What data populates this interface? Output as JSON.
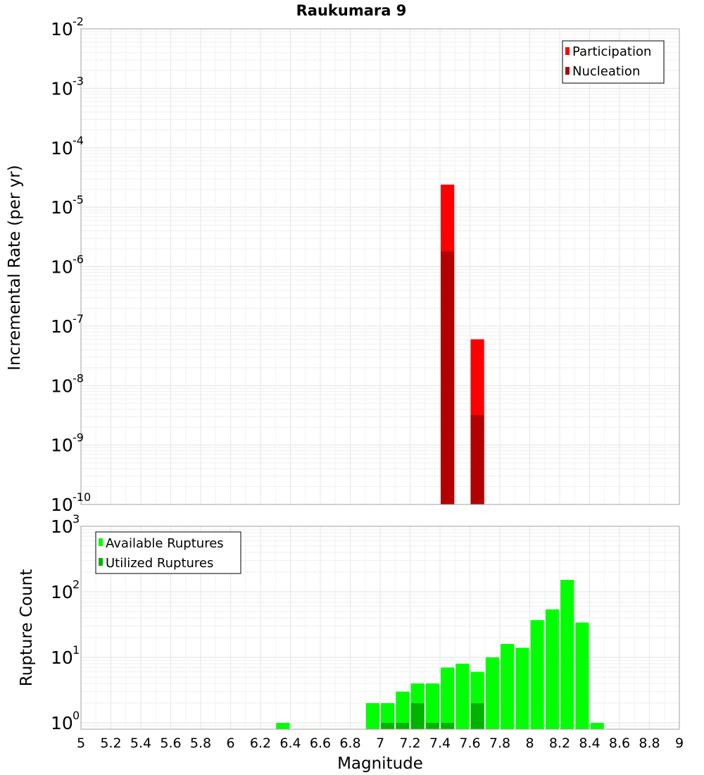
{
  "chart_data": [
    {
      "type": "bar",
      "title": "Raukumara 9",
      "xlabel": "",
      "ylabel": "Incremental Rate (per yr)",
      "yscale": "log",
      "xlim": [
        5,
        9
      ],
      "ylim": [
        1e-10,
        0.01
      ],
      "y_ticks": [
        {
          "base": "10",
          "exp": "-10"
        },
        {
          "base": "10",
          "exp": "-9"
        },
        {
          "base": "10",
          "exp": "-8"
        },
        {
          "base": "10",
          "exp": "-7"
        },
        {
          "base": "10",
          "exp": "-6"
        },
        {
          "base": "10",
          "exp": "-5"
        },
        {
          "base": "10",
          "exp": "-4"
        },
        {
          "base": "10",
          "exp": "-3"
        },
        {
          "base": "10",
          "exp": "-2"
        }
      ],
      "legend_position": "top-right",
      "grid": true,
      "bar_width": 0.09,
      "series": [
        {
          "name": "Participation",
          "color": "#ff0000",
          "x": [
            7.45,
            7.65
          ],
          "values": [
            2.4e-05,
            6e-08
          ]
        },
        {
          "name": "Nucleation",
          "color": "#b30000",
          "x": [
            7.45,
            7.65
          ],
          "values": [
            1.8e-06,
            3.2e-09
          ]
        }
      ]
    },
    {
      "type": "bar",
      "title": "",
      "xlabel": "Magnitude",
      "ylabel": "Rupture Count",
      "yscale": "log",
      "xlim": [
        5,
        9
      ],
      "ylim": [
        0.8,
        1000
      ],
      "x_ticks": [
        "5",
        "5.2",
        "5.4",
        "5.6",
        "5.8",
        "6",
        "6.2",
        "6.4",
        "6.6",
        "6.8",
        "7",
        "7.2",
        "7.4",
        "7.6",
        "7.8",
        "8",
        "8.2",
        "8.4",
        "8.6",
        "8.8",
        "9"
      ],
      "y_ticks": [
        {
          "base": "10",
          "exp": "0"
        },
        {
          "base": "10",
          "exp": "1"
        },
        {
          "base": "10",
          "exp": "2"
        },
        {
          "base": "10",
          "exp": "3"
        }
      ],
      "legend_position": "top-left",
      "grid": true,
      "bar_width": 0.09,
      "series": [
        {
          "name": "Available Ruptures",
          "color": "#00ff00",
          "x": [
            6.35,
            6.95,
            7.05,
            7.15,
            7.25,
            7.35,
            7.45,
            7.55,
            7.65,
            7.75,
            7.85,
            7.95,
            8.05,
            8.15,
            8.25,
            8.35,
            8.45
          ],
          "values": [
            1,
            2,
            2,
            3,
            4,
            4,
            7,
            8,
            6,
            10,
            16,
            14,
            37,
            54,
            152,
            34,
            1
          ]
        },
        {
          "name": "Utilized Ruptures",
          "color": "#00b300",
          "x": [
            7.05,
            7.15,
            7.25,
            7.35,
            7.45,
            7.65
          ],
          "values": [
            1,
            1,
            2,
            1,
            1,
            2
          ]
        }
      ]
    }
  ]
}
